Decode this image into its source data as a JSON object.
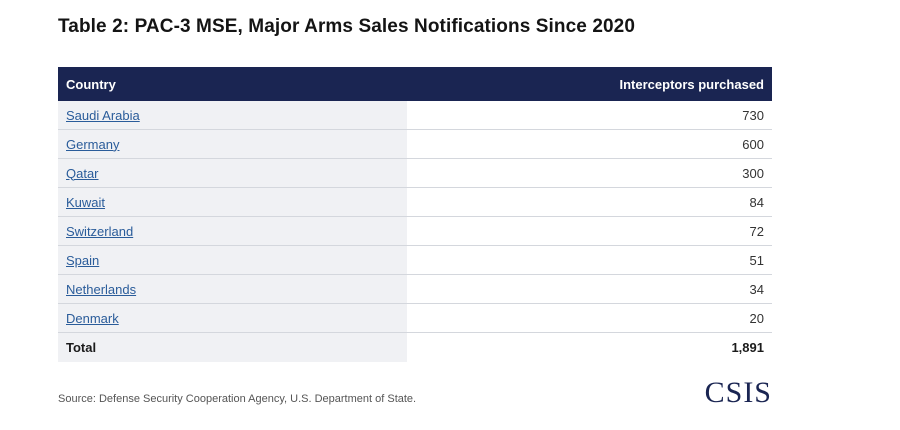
{
  "title": "Table 2: PAC-3 MSE, Major Arms Sales Notifications Since 2020",
  "table": {
    "headers": {
      "country": "Country",
      "value": "Interceptors purchased"
    },
    "rows": [
      {
        "country": "Saudi Arabia",
        "value": "730"
      },
      {
        "country": "Germany",
        "value": "600"
      },
      {
        "country": "Qatar",
        "value": "300"
      },
      {
        "country": "Kuwait",
        "value": "84"
      },
      {
        "country": "Switzerland",
        "value": "72"
      },
      {
        "country": "Spain",
        "value": "51"
      },
      {
        "country": "Netherlands",
        "value": "34"
      },
      {
        "country": "Denmark",
        "value": "20"
      }
    ],
    "total": {
      "label": "Total",
      "value": "1,891"
    }
  },
  "source": "Source: Defense Security Cooperation Agency, U.S. Department of State.",
  "logo": "CSIS",
  "colors": {
    "header_bg": "#1a2552",
    "link": "#2a5c9a",
    "country_cell_bg": "#f0f1f4"
  }
}
